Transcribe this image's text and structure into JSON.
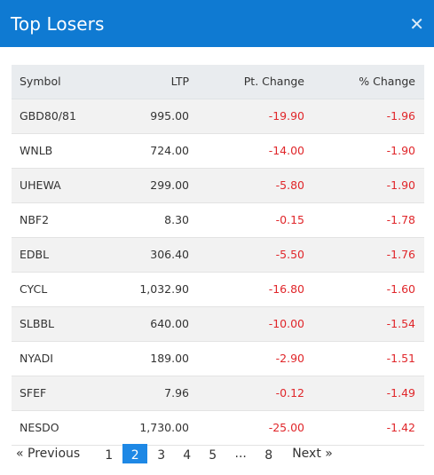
{
  "modal": {
    "title": "Top Losers",
    "close_symbol": "✕"
  },
  "table": {
    "headers": {
      "symbol": "Symbol",
      "ltp": "LTP",
      "pt_change": "Pt. Change",
      "pct_change": "% Change"
    },
    "rows": [
      {
        "symbol": "GBD80/81",
        "ltp": "995.00",
        "pt_change": "-19.90",
        "pct_change": "-1.96"
      },
      {
        "symbol": "WNLB",
        "ltp": "724.00",
        "pt_change": "-14.00",
        "pct_change": "-1.90"
      },
      {
        "symbol": "UHEWA",
        "ltp": "299.00",
        "pt_change": "-5.80",
        "pct_change": "-1.90"
      },
      {
        "symbol": "NBF2",
        "ltp": "8.30",
        "pt_change": "-0.15",
        "pct_change": "-1.78"
      },
      {
        "symbol": "EDBL",
        "ltp": "306.40",
        "pt_change": "-5.50",
        "pct_change": "-1.76"
      },
      {
        "symbol": "CYCL",
        "ltp": "1,032.90",
        "pt_change": "-16.80",
        "pct_change": "-1.60"
      },
      {
        "symbol": "SLBBL",
        "ltp": "640.00",
        "pt_change": "-10.00",
        "pct_change": "-1.54"
      },
      {
        "symbol": "NYADI",
        "ltp": "189.00",
        "pt_change": "-2.90",
        "pct_change": "-1.51"
      },
      {
        "symbol": "SFEF",
        "ltp": "7.96",
        "pt_change": "-0.12",
        "pct_change": "-1.49"
      },
      {
        "symbol": "NESDO",
        "ltp": "1,730.00",
        "pt_change": "-25.00",
        "pct_change": "-1.42"
      }
    ]
  },
  "pagination": {
    "previous_label": "«  Previous",
    "next_label": "Next  »",
    "pages": [
      "1",
      "2",
      "3",
      "4",
      "5"
    ],
    "ellipsis": "...",
    "last_page": "8",
    "current_page": "2"
  },
  "colors": {
    "header_bg": "#0f7ad2",
    "negative": "#e0262a",
    "active_page": "#1e88e5"
  }
}
